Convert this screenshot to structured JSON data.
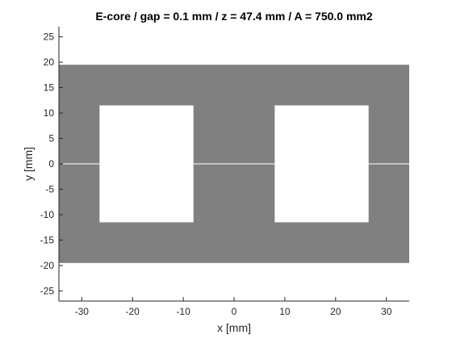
{
  "chart_data": {
    "type": "area",
    "title": "E-core / gap = 0.1 mm / z = 47.4 mm / A = 750.0 mm2",
    "xlabel": "x [mm]",
    "ylabel": "y [mm]",
    "xlim": [
      -34.5,
      34.5
    ],
    "ylim": [
      -27,
      27
    ],
    "xticks": [
      -30,
      -20,
      -10,
      0,
      10,
      20,
      30
    ],
    "yticks": [
      -25,
      -20,
      -15,
      -10,
      -5,
      0,
      5,
      10,
      15,
      20,
      25
    ],
    "grid": false,
    "legend": "none",
    "core": {
      "x": [
        -34.5,
        34.5
      ],
      "y": [
        -19.5,
        19.5
      ],
      "color": "#808080"
    },
    "windows": [
      {
        "x": [
          -26.5,
          -8
        ],
        "y": [
          -11.5,
          11.5
        ],
        "color": "#ffffff"
      },
      {
        "x": [
          8,
          26.5
        ],
        "y": [
          -11.5,
          11.5
        ],
        "color": "#ffffff"
      }
    ],
    "gap": {
      "y": 0,
      "thickness": 0.1,
      "color": "#ffffff"
    },
    "colors": {
      "axis": "#262626",
      "background": "#ffffff"
    }
  }
}
